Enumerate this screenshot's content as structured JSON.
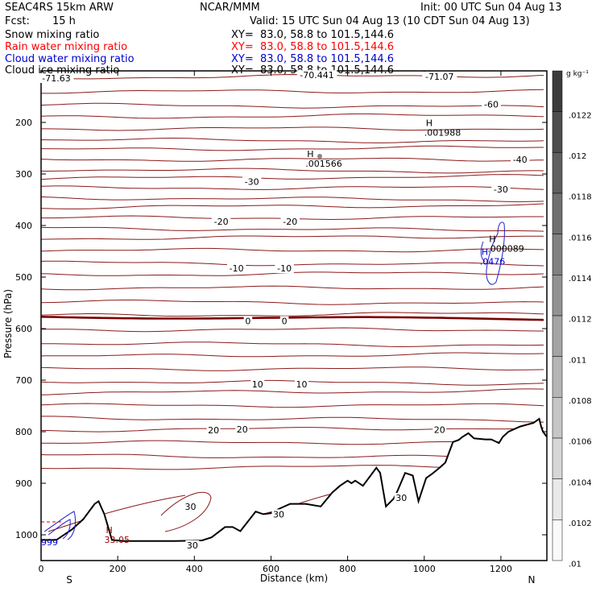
{
  "header": {
    "model": "SEAC4RS 15km ARW",
    "center": "NCAR/MMM",
    "init": "Init: 00 UTC Sun 04 Aug 13",
    "fcst_label": "Fcst:",
    "fcst_value": "15 h",
    "valid": "Valid: 15 UTC Sun 04 Aug 13 (10 CDT Sun 04 Aug 13)"
  },
  "fields": [
    {
      "name": "Snow mixing ratio",
      "xy": "XY=  83.0, 58.8 to 101.5,144.6",
      "color": "#000000"
    },
    {
      "name": "Rain water mixing ratio",
      "xy": "XY=  83.0, 58.8 to 101.5,144.6",
      "color": "#ff0000"
    },
    {
      "name": "Cloud water mixing ratio",
      "xy": "XY=  83.0, 58.8 to 101.5,144.6",
      "color": "#0000cc"
    },
    {
      "name": "Cloud ice mixing ratio",
      "xy": "XY=  83.0, 58.8 to 101.5,144.6",
      "color": "#000000"
    }
  ],
  "chart_data": {
    "type": "contour",
    "title": "",
    "xlabel": "Distance (km)",
    "ylabel": "Pressure (hPa)",
    "xlim": [
      0,
      1320
    ],
    "ylim": [
      1050,
      100
    ],
    "x_ticks": [
      0,
      200,
      400,
      600,
      800,
      1000,
      1200
    ],
    "y_ticks": [
      200,
      300,
      400,
      500,
      600,
      700,
      800,
      900,
      1000
    ],
    "x_end_labels": {
      "left": "S",
      "right": "N"
    },
    "colorbar": {
      "unit": "g kg⁻¹",
      "labels": [
        ".0122",
        ".012",
        ".0118",
        ".0116",
        ".0114",
        ".0112",
        ".011",
        ".0108",
        ".0106",
        ".0104",
        ".0102",
        ".01"
      ]
    },
    "temperature_labels": [
      {
        "text": "-71.63",
        "x": 40,
        "p": 114
      },
      {
        "text": "-70.441",
        "x": 720,
        "p": 108
      },
      {
        "text": "-71.07",
        "x": 1040,
        "p": 111
      },
      {
        "text": "-60",
        "x": 1175,
        "p": 165
      },
      {
        "text": "-40",
        "x": 1250,
        "p": 272
      },
      {
        "text": "-30",
        "x": 550,
        "p": 315
      },
      {
        "text": "-30",
        "x": 1200,
        "p": 330
      },
      {
        "text": "-20",
        "x": 470,
        "p": 392
      },
      {
        "text": "-20",
        "x": 650,
        "p": 392
      },
      {
        "text": "-10",
        "x": 510,
        "p": 483
      },
      {
        "text": "-10",
        "x": 635,
        "p": 483
      },
      {
        "text": "0",
        "x": 540,
        "p": 585
      },
      {
        "text": "0",
        "x": 635,
        "p": 585
      },
      {
        "text": "10",
        "x": 565,
        "p": 708
      },
      {
        "text": "10",
        "x": 680,
        "p": 708
      },
      {
        "text": "20",
        "x": 450,
        "p": 797
      },
      {
        "text": "20",
        "x": 525,
        "p": 795
      },
      {
        "text": "20",
        "x": 1040,
        "p": 796
      },
      {
        "text": "30",
        "x": 390,
        "p": 945
      },
      {
        "text": "30",
        "x": 620,
        "p": 960
      },
      {
        "text": "30",
        "x": 940,
        "p": 928
      },
      {
        "text": "30",
        "x": 395,
        "p": 1020
      }
    ],
    "extrema_labels": [
      {
        "mark": "H",
        "value": ".001988",
        "x": 1000,
        "p": 210,
        "color": "#000000"
      },
      {
        "mark": "H",
        "value": ".001566",
        "x": 690,
        "p": 270,
        "color": "#000000"
      },
      {
        "mark": "H",
        "value": ".000089",
        "x": 1165,
        "p": 435,
        "color": "#000000"
      },
      {
        "mark": "H",
        "value": ".0476",
        "x": 1145,
        "p": 460,
        "color": "#0000cc"
      },
      {
        "mark": "H",
        "value": "33.05",
        "x": 165,
        "p": 1000,
        "color": "#a00000"
      },
      {
        "mark": "",
        "value": "999",
        "x": 0,
        "p": 1005,
        "color": "#0000cc"
      }
    ],
    "isotherm_levels_hpa": [
      113,
      140,
      166,
      190,
      212,
      233,
      253,
      272,
      291,
      309,
      327,
      346,
      365,
      385,
      405,
      425,
      448,
      472,
      496,
      521,
      547,
      575,
      602,
      628,
      654,
      678,
      702,
      725,
      749,
      773,
      797,
      821,
      846,
      871
    ],
    "zero_line_hpa": 577,
    "terrain": [
      [
        0,
        1010
      ],
      [
        40,
        1010
      ],
      [
        80,
        990
      ],
      [
        110,
        970
      ],
      [
        140,
        940
      ],
      [
        150,
        935
      ],
      [
        165,
        960
      ],
      [
        185,
        1010
      ],
      [
        215,
        1012
      ],
      [
        260,
        1012
      ],
      [
        300,
        1012
      ],
      [
        350,
        1012
      ],
      [
        420,
        1011
      ],
      [
        445,
        1005
      ],
      [
        480,
        985
      ],
      [
        500,
        985
      ],
      [
        520,
        993
      ],
      [
        560,
        955
      ],
      [
        580,
        960
      ],
      [
        600,
        958
      ],
      [
        620,
        950
      ],
      [
        650,
        940
      ],
      [
        690,
        940
      ],
      [
        730,
        945
      ],
      [
        760,
        918
      ],
      [
        780,
        905
      ],
      [
        800,
        895
      ],
      [
        810,
        900
      ],
      [
        820,
        895
      ],
      [
        840,
        905
      ],
      [
        860,
        885
      ],
      [
        875,
        870
      ],
      [
        885,
        880
      ],
      [
        900,
        945
      ],
      [
        920,
        930
      ],
      [
        930,
        915
      ],
      [
        950,
        880
      ],
      [
        970,
        885
      ],
      [
        985,
        935
      ],
      [
        1005,
        890
      ],
      [
        1020,
        882
      ],
      [
        1040,
        870
      ],
      [
        1055,
        860
      ],
      [
        1075,
        820
      ],
      [
        1090,
        816
      ],
      [
        1100,
        810
      ],
      [
        1115,
        803
      ],
      [
        1130,
        813
      ],
      [
        1160,
        815
      ],
      [
        1175,
        815
      ],
      [
        1195,
        822
      ],
      [
        1205,
        810
      ],
      [
        1220,
        800
      ],
      [
        1250,
        790
      ],
      [
        1285,
        783
      ],
      [
        1300,
        775
      ],
      [
        1305,
        790
      ],
      [
        1310,
        800
      ],
      [
        1320,
        810
      ]
    ]
  }
}
